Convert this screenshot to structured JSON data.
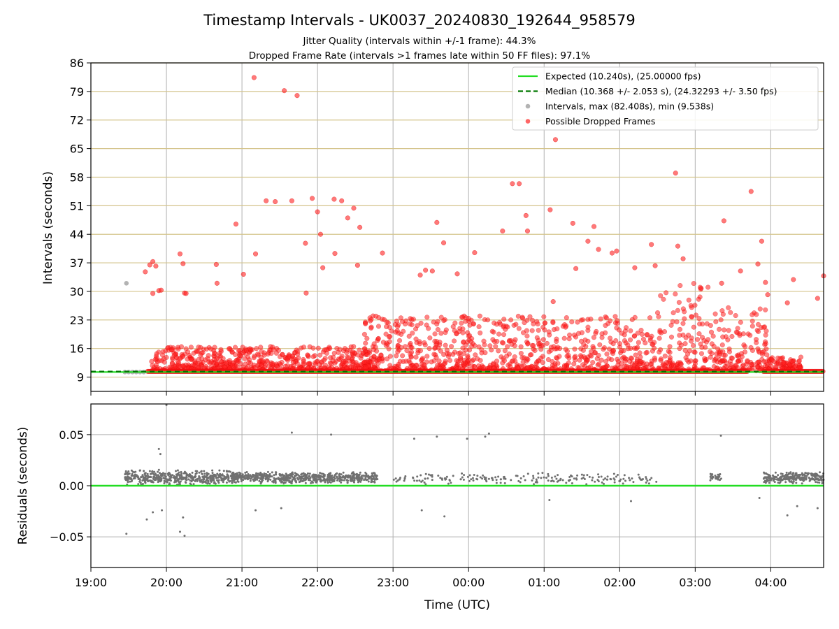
{
  "chart_data": [
    {
      "type": "scatter",
      "panel": "intervals",
      "title": "Timestamp Intervals - UK0037_20240830_192644_958579",
      "subtitles": [
        "Jitter Quality (intervals within +/-1 frame): 44.3%",
        "Dropped Frame Rate (intervals >1 frames late within 50 FF files): 97.1%"
      ],
      "xlabel": "",
      "ylabel": "Intervals (seconds)",
      "xlim_hours": [
        19.0,
        28.7
      ],
      "ylim": [
        5.5,
        86
      ],
      "yticks": [
        9,
        16,
        23,
        30,
        37,
        44,
        51,
        58,
        65,
        72,
        79,
        86
      ],
      "grid": "x gray, y khaki",
      "legend_position": "top-right",
      "legend": [
        {
          "label": "Expected (10.240s), (25.00000 fps)",
          "style": "solid-line",
          "color": "#22dd22"
        },
        {
          "label": "Median (10.368 +/- 2.053 s), (24.32293 +/- 3.50 fps)",
          "style": "dashed-line",
          "color": "#007700"
        },
        {
          "label": "Intervals, max (82.408s), min (9.538s)",
          "style": "marker",
          "color": "#999999"
        },
        {
          "label": "Possible Dropped Frames",
          "style": "marker",
          "color": "#ff3333"
        }
      ],
      "expected_interval": 10.24,
      "median_interval": 10.368,
      "baseline_dropped_value": 10.4,
      "baseline_dropped_range_hours": [
        [
          19.75,
          23.0
        ],
        [
          23.0,
          27.7
        ],
        [
          27.9,
          28.7
        ]
      ],
      "normal_intervals": [
        {
          "x": 19.47,
          "y": 32.0
        },
        {
          "x": 19.45,
          "y": 10.24
        },
        {
          "x": 19.5,
          "y": 10.24
        },
        {
          "x": 19.55,
          "y": 10.24
        },
        {
          "x": 19.6,
          "y": 10.24
        },
        {
          "x": 19.65,
          "y": 10.24
        },
        {
          "x": 19.7,
          "y": 10.24
        }
      ],
      "dropped_frames": [
        {
          "x": 19.72,
          "y": 34.8
        },
        {
          "x": 19.78,
          "y": 36.5
        },
        {
          "x": 19.82,
          "y": 37.3
        },
        {
          "x": 19.86,
          "y": 36.2
        },
        {
          "x": 19.82,
          "y": 29.5
        },
        {
          "x": 19.9,
          "y": 30.2
        },
        {
          "x": 19.93,
          "y": 30.3
        },
        {
          "x": 20.18,
          "y": 39.2
        },
        {
          "x": 20.22,
          "y": 36.8
        },
        {
          "x": 20.24,
          "y": 29.6
        },
        {
          "x": 20.26,
          "y": 29.5
        },
        {
          "x": 20.66,
          "y": 36.6
        },
        {
          "x": 20.67,
          "y": 32.0
        },
        {
          "x": 20.92,
          "y": 46.5
        },
        {
          "x": 21.02,
          "y": 34.2
        },
        {
          "x": 21.16,
          "y": 82.4
        },
        {
          "x": 21.18,
          "y": 39.2
        },
        {
          "x": 21.32,
          "y": 52.2
        },
        {
          "x": 21.44,
          "y": 52.0
        },
        {
          "x": 21.56,
          "y": 79.2
        },
        {
          "x": 21.66,
          "y": 52.2
        },
        {
          "x": 21.73,
          "y": 78.0
        },
        {
          "x": 21.84,
          "y": 41.8
        },
        {
          "x": 21.85,
          "y": 29.6
        },
        {
          "x": 21.93,
          "y": 52.8
        },
        {
          "x": 22.0,
          "y": 49.5
        },
        {
          "x": 22.04,
          "y": 44.0
        },
        {
          "x": 22.07,
          "y": 35.8
        },
        {
          "x": 22.22,
          "y": 52.6
        },
        {
          "x": 22.23,
          "y": 39.3
        },
        {
          "x": 22.32,
          "y": 52.2
        },
        {
          "x": 22.4,
          "y": 48.0
        },
        {
          "x": 22.48,
          "y": 50.4
        },
        {
          "x": 22.53,
          "y": 36.4
        },
        {
          "x": 22.56,
          "y": 45.7
        },
        {
          "x": 22.86,
          "y": 39.4
        },
        {
          "x": 23.36,
          "y": 34.0
        },
        {
          "x": 23.43,
          "y": 35.2
        },
        {
          "x": 23.52,
          "y": 35.0
        },
        {
          "x": 23.58,
          "y": 46.9
        },
        {
          "x": 23.67,
          "y": 41.9
        },
        {
          "x": 23.85,
          "y": 34.3
        },
        {
          "x": 24.08,
          "y": 39.5
        },
        {
          "x": 24.45,
          "y": 44.8
        },
        {
          "x": 24.58,
          "y": 56.4
        },
        {
          "x": 24.67,
          "y": 56.4
        },
        {
          "x": 24.76,
          "y": 48.6
        },
        {
          "x": 24.78,
          "y": 44.8
        },
        {
          "x": 25.08,
          "y": 50.0
        },
        {
          "x": 25.12,
          "y": 27.5
        },
        {
          "x": 25.15,
          "y": 67.2
        },
        {
          "x": 25.38,
          "y": 46.7
        },
        {
          "x": 25.42,
          "y": 35.6
        },
        {
          "x": 25.58,
          "y": 42.3
        },
        {
          "x": 25.66,
          "y": 45.9
        },
        {
          "x": 25.72,
          "y": 40.3
        },
        {
          "x": 25.9,
          "y": 39.4
        },
        {
          "x": 25.96,
          "y": 39.9
        },
        {
          "x": 26.2,
          "y": 35.8
        },
        {
          "x": 26.42,
          "y": 41.5
        },
        {
          "x": 26.47,
          "y": 36.3
        },
        {
          "x": 26.74,
          "y": 59.0
        },
        {
          "x": 26.77,
          "y": 41.1
        },
        {
          "x": 26.84,
          "y": 38.0
        },
        {
          "x": 27.35,
          "y": 32.0
        },
        {
          "x": 27.38,
          "y": 47.3
        },
        {
          "x": 27.6,
          "y": 35.0
        },
        {
          "x": 27.74,
          "y": 54.5
        },
        {
          "x": 27.83,
          "y": 36.7
        },
        {
          "x": 27.88,
          "y": 42.3
        },
        {
          "x": 27.93,
          "y": 32.2
        },
        {
          "x": 27.96,
          "y": 29.2
        },
        {
          "x": 28.22,
          "y": 27.2
        },
        {
          "x": 28.3,
          "y": 32.9
        },
        {
          "x": 28.62,
          "y": 28.3
        },
        {
          "x": 28.7,
          "y": 33.8
        }
      ],
      "dropped_cloud": {
        "description_values": "dense cluster of red markers between 10 and 25 s across the night",
        "segments": [
          {
            "x_range": [
              19.8,
              22.7
            ],
            "y_range": [
              10.5,
              16.5
            ]
          },
          {
            "x_range": [
              22.6,
              26.5
            ],
            "y_range": [
              10.5,
              24.0
            ]
          },
          {
            "x_range": [
              26.5,
              27.2
            ],
            "y_range": [
              10.5,
              32.5
            ]
          },
          {
            "x_range": [
              27.2,
              28.0
            ],
            "y_range": [
              10.5,
              26.0
            ]
          },
          {
            "x_range": [
              28.0,
              28.4
            ],
            "y_range": [
              10.5,
              14.0
            ]
          }
        ]
      }
    },
    {
      "type": "scatter",
      "panel": "residuals",
      "xlabel": "Time (UTC)",
      "ylabel": "Residuals (seconds)",
      "xlim_hours": [
        19.0,
        28.7
      ],
      "ylim": [
        -0.08,
        0.08
      ],
      "yticks": [
        -0.05,
        0.0,
        0.05
      ],
      "ytick_labels": [
        "−0.05",
        "0.00",
        "0.05"
      ],
      "xticks_hours": [
        19,
        20,
        21,
        22,
        23,
        24,
        25,
        26,
        27,
        28
      ],
      "xtick_labels": [
        "19:00",
        "20:00",
        "21:00",
        "22:00",
        "23:00",
        "00:00",
        "01:00",
        "02:00",
        "03:00",
        "04:00"
      ],
      "grid": "both gray",
      "zero_line_color": "#22dd22",
      "outliers": [
        {
          "x": 19.47,
          "y": -0.047
        },
        {
          "x": 19.74,
          "y": -0.033
        },
        {
          "x": 19.82,
          "y": -0.026
        },
        {
          "x": 19.9,
          "y": 0.036
        },
        {
          "x": 19.92,
          "y": 0.031
        },
        {
          "x": 19.94,
          "y": -0.024
        },
        {
          "x": 20.0,
          "y": 0.079
        },
        {
          "x": 20.18,
          "y": -0.045
        },
        {
          "x": 20.22,
          "y": -0.031
        },
        {
          "x": 20.24,
          "y": -0.049
        },
        {
          "x": 21.18,
          "y": -0.024
        },
        {
          "x": 21.52,
          "y": -0.022
        },
        {
          "x": 21.66,
          "y": 0.052
        },
        {
          "x": 22.18,
          "y": 0.05
        },
        {
          "x": 23.28,
          "y": 0.046
        },
        {
          "x": 23.58,
          "y": 0.048
        },
        {
          "x": 23.68,
          "y": -0.03
        },
        {
          "x": 23.98,
          "y": 0.046
        },
        {
          "x": 24.22,
          "y": 0.048
        },
        {
          "x": 24.27,
          "y": 0.051
        },
        {
          "x": 23.38,
          "y": -0.024
        },
        {
          "x": 25.07,
          "y": -0.014
        },
        {
          "x": 26.15,
          "y": -0.015
        },
        {
          "x": 27.34,
          "y": 0.049
        },
        {
          "x": 27.85,
          "y": -0.012
        },
        {
          "x": 28.22,
          "y": -0.029
        },
        {
          "x": 28.35,
          "y": -0.02
        },
        {
          "x": 28.62,
          "y": -0.022
        }
      ],
      "residual_band": {
        "segments": [
          {
            "x_range": [
              19.45,
              20.9
            ],
            "center": 0.008,
            "spread": 0.008,
            "density": "dense"
          },
          {
            "x_range": [
              20.9,
              22.8
            ],
            "center": 0.008,
            "spread": 0.006,
            "density": "dense"
          },
          {
            "x_range": [
              23.0,
              26.5
            ],
            "center": 0.007,
            "spread": 0.006,
            "density": "sparse"
          },
          {
            "x_range": [
              27.2,
              27.35
            ],
            "center": 0.008,
            "spread": 0.006,
            "density": "medium"
          },
          {
            "x_range": [
              27.9,
              28.7
            ],
            "center": 0.008,
            "spread": 0.006,
            "density": "dense"
          }
        ]
      }
    }
  ]
}
